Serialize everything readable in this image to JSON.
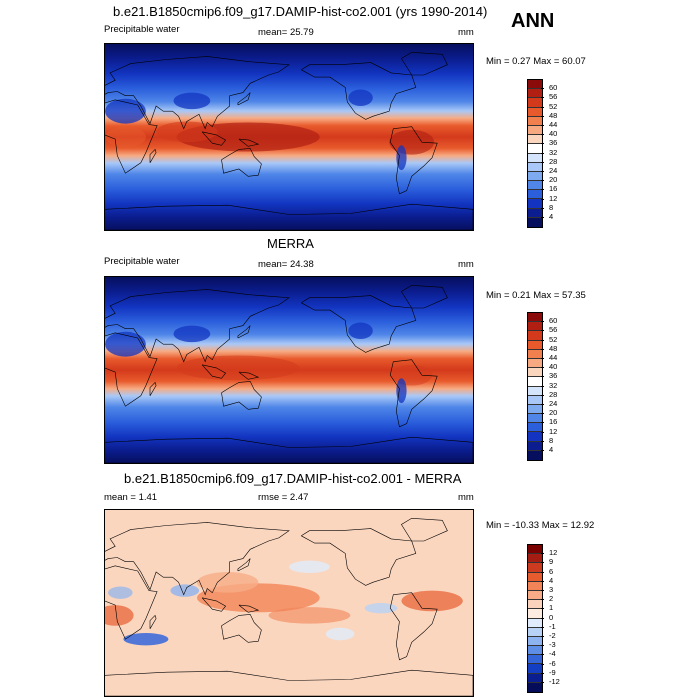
{
  "season": "ANN",
  "panels": [
    {
      "title": "b.e21.B1850cmip6.f09_g17.DAMIP-hist-co2.001 (yrs 1990-2014)",
      "left_label": "Precipitable water",
      "center_label": "mean=  25.79",
      "right_label": "mm",
      "minmax": "Min =   0.27 Max =  60.07",
      "kind": "abs",
      "levels": [
        "60",
        "56",
        "52",
        "48",
        "44",
        "40",
        "36",
        "32",
        "28",
        "24",
        "20",
        "16",
        "12",
        "8",
        "4"
      ]
    },
    {
      "title": "MERRA",
      "left_label": "Precipitable water",
      "center_label": "mean=  24.38",
      "right_label": "mm",
      "minmax": "Min =   0.21 Max =  57.35",
      "kind": "abs",
      "levels": [
        "60",
        "56",
        "52",
        "48",
        "44",
        "40",
        "36",
        "32",
        "28",
        "24",
        "20",
        "16",
        "12",
        "8",
        "4"
      ]
    },
    {
      "title": "b.e21.B1850cmip6.f09_g17.DAMIP-hist-co2.001 - MERRA",
      "left_label": "mean =   1.41",
      "center_label": "rmse =   2.47",
      "right_label": "mm",
      "minmax": "Min = -10.33 Max =  12.92",
      "kind": "diff",
      "levels": [
        "12",
        "9",
        "6",
        "4",
        "3",
        "2",
        "1",
        "0",
        "-1",
        "-2",
        "-3",
        "-4",
        "-6",
        "-9",
        "-12"
      ]
    }
  ],
  "colors": {
    "abs_palette": [
      "#8b0a0a",
      "#b01f12",
      "#d33a1c",
      "#e85a2c",
      "#f2804e",
      "#f7aa82",
      "#fbd6bf",
      "#ffffff",
      "#d3e4fb",
      "#a9c8f7",
      "#7eaaf0",
      "#4f86e8",
      "#2b5fdc",
      "#1234c0",
      "#0b1d8f",
      "#060f5e"
    ],
    "diff_palette": [
      "#7a0000",
      "#a51c12",
      "#cc3a1f",
      "#e65c2f",
      "#f28457",
      "#f7ac87",
      "#fbd3bd",
      "#fdece0",
      "#e0ecfb",
      "#b8d2f6",
      "#8db3f0",
      "#5f8ee6",
      "#3466da",
      "#153fc2",
      "#0a1e90",
      "#050c5a"
    ]
  }
}
